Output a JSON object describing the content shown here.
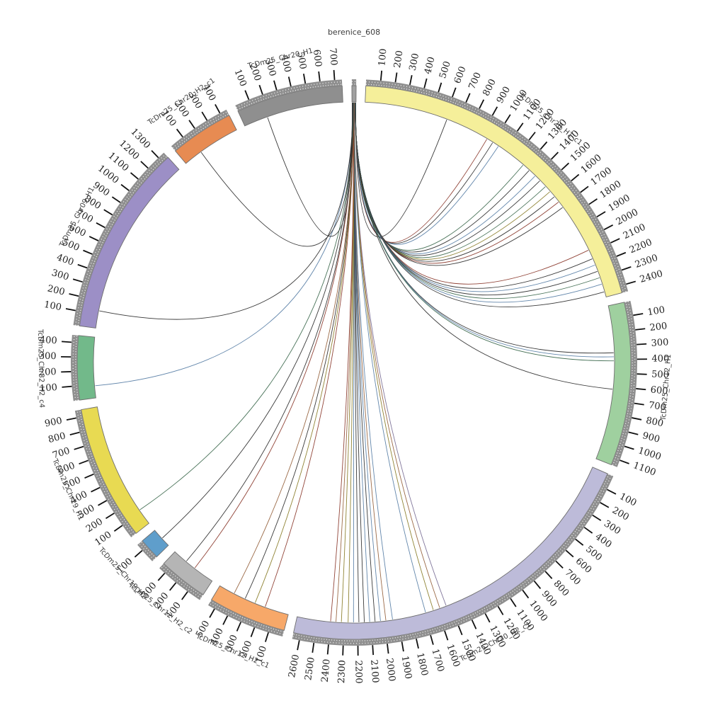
{
  "figure": {
    "background": "#ffffff",
    "tick_label_color": "#1f1f1f",
    "segment_label_color": "#3c3c3c",
    "band_color": "#8f8f8f",
    "outline_color": "#6e6e6e"
  },
  "chart_data": {
    "type": "chord",
    "title": "berenice_608",
    "focal_segment": "berenice_608",
    "tick_interval": 100,
    "gap_degrees": 2,
    "legend_position": "none",
    "grid": false,
    "segments": [
      {
        "name": "berenice_608",
        "length": 30,
        "color": "#a0a0a0"
      },
      {
        "name": "TcDm25_Chr28_H1_c1",
        "length": 2450,
        "color": "#f5ef9a"
      },
      {
        "name": "TcDm25_Chr12_H1",
        "length": 1150,
        "color": "#9fd09f"
      },
      {
        "name": "TcDm25_Chr30_H2_c1",
        "length": 2650,
        "color": "#bdbbd9"
      },
      {
        "name": "TcDm25_Chr12_H2_c1",
        "length": 550,
        "color": "#f7a869"
      },
      {
        "name": "TcDm25_Chr12_H2_c2",
        "length": 350,
        "color": "#b5b5b5"
      },
      {
        "name": "TcDm25_Chr19_H2",
        "length": 150,
        "color": "#5f9ecb"
      },
      {
        "name": "TcDm25_Chr19_H1",
        "length": 950,
        "color": "#e8da52"
      },
      {
        "name": "TcDm25_Chr32_H2_c4",
        "length": 450,
        "color": "#72b98a"
      },
      {
        "name": "TcDm25_Chr09_H1",
        "length": 1350,
        "color": "#9c8fc6"
      },
      {
        "name": "TcDm25_Chr20_H2_c1",
        "length": 450,
        "color": "#e78b52"
      },
      {
        "name": "TcDm25_Chr20_H1",
        "length": 750,
        "color": "#8f8f8f"
      }
    ],
    "link_colors": {
      "dark": "#2f2f2f",
      "red": "#8c3b2e",
      "brown": "#96623d",
      "olive": "#8a7d2a",
      "green": "#3f6b50",
      "blue": "#5a7fa6",
      "purple": "#7a6f96"
    },
    "links": [
      [
        "TcDm25_Chr28_H1_c1",
        620,
        "dark"
      ],
      [
        "TcDm25_Chr28_H1_c1",
        950,
        "red"
      ],
      [
        "TcDm25_Chr28_H1_c1",
        1000,
        "dark"
      ],
      [
        "TcDm25_Chr28_H1_c1",
        1050,
        "blue"
      ],
      [
        "TcDm25_Chr28_H1_c1",
        1280,
        "green"
      ],
      [
        "TcDm25_Chr28_H1_c1",
        1340,
        "dark"
      ],
      [
        "TcDm25_Chr28_H1_c1",
        1400,
        "blue"
      ],
      [
        "TcDm25_Chr28_H1_c1",
        1450,
        "dark"
      ],
      [
        "TcDm25_Chr28_H1_c1",
        1510,
        "green"
      ],
      [
        "TcDm25_Chr28_H1_c1",
        1560,
        "olive"
      ],
      [
        "TcDm25_Chr28_H1_c1",
        1610,
        "dark"
      ],
      [
        "TcDm25_Chr28_H1_c1",
        1660,
        "red"
      ],
      [
        "TcDm25_Chr28_H1_c1",
        1710,
        "dark"
      ],
      [
        "TcDm25_Chr28_H1_c1",
        2080,
        "red"
      ],
      [
        "TcDm25_Chr28_H1_c1",
        2150,
        "dark"
      ],
      [
        "TcDm25_Chr28_H1_c1",
        2200,
        "blue"
      ],
      [
        "TcDm25_Chr28_H1_c1",
        2250,
        "dark"
      ],
      [
        "TcDm25_Chr28_H1_c1",
        2300,
        "green"
      ],
      [
        "TcDm25_Chr28_H1_c1",
        2350,
        "blue"
      ],
      [
        "TcDm25_Chr28_H1_c1",
        2410,
        "dark"
      ],
      [
        "TcDm25_Chr12_H1",
        350,
        "dark"
      ],
      [
        "TcDm25_Chr12_H1",
        380,
        "blue"
      ],
      [
        "TcDm25_Chr12_H1",
        410,
        "green"
      ],
      [
        "TcDm25_Chr12_H1",
        620,
        "dark"
      ],
      [
        "TcDm25_Chr30_H2_c1",
        1530,
        "purple"
      ],
      [
        "TcDm25_Chr30_H2_c1",
        1580,
        "brown"
      ],
      [
        "TcDm25_Chr30_H2_c1",
        1630,
        "olive"
      ],
      [
        "TcDm25_Chr30_H2_c1",
        1690,
        "blue"
      ],
      [
        "TcDm25_Chr30_H2_c1",
        1940,
        "blue"
      ],
      [
        "TcDm25_Chr30_H2_c1",
        1990,
        "brown"
      ],
      [
        "TcDm25_Chr30_H2_c1",
        2030,
        "blue"
      ],
      [
        "TcDm25_Chr30_H2_c1",
        2070,
        "dark"
      ],
      [
        "TcDm25_Chr30_H2_c1",
        2110,
        "blue"
      ],
      [
        "TcDm25_Chr30_H2_c1",
        2150,
        "dark"
      ],
      [
        "TcDm25_Chr30_H2_c1",
        2190,
        "dark"
      ],
      [
        "TcDm25_Chr30_H2_c1",
        2230,
        "blue"
      ],
      [
        "TcDm25_Chr30_H2_c1",
        2270,
        "olive"
      ],
      [
        "TcDm25_Chr30_H2_c1",
        2320,
        "olive"
      ],
      [
        "TcDm25_Chr30_H2_c1",
        2360,
        "brown"
      ],
      [
        "TcDm25_Chr30_H2_c1",
        2400,
        "red"
      ],
      [
        "TcDm25_Chr12_H2_c1",
        180,
        "red"
      ],
      [
        "TcDm25_Chr12_H2_c1",
        260,
        "olive"
      ],
      [
        "TcDm25_Chr12_H2_c1",
        340,
        "dark"
      ],
      [
        "TcDm25_Chr12_H2_c1",
        430,
        "brown"
      ],
      [
        "TcDm25_Chr12_H2_c2",
        160,
        "red"
      ],
      [
        "TcDm25_Chr12_H2_c2",
        240,
        "dark"
      ],
      [
        "TcDm25_Chr19_H2",
        70,
        "dark"
      ],
      [
        "TcDm25_Chr19_H1",
        120,
        "green"
      ],
      [
        "TcDm25_Chr32_H2_c4",
        90,
        "blue"
      ],
      [
        "TcDm25_Chr09_H1",
        130,
        "dark"
      ],
      [
        "TcDm25_Chr20_H2_c1",
        140,
        "dark"
      ],
      [
        "TcDm25_Chr20_H1",
        180,
        "dark"
      ]
    ]
  }
}
